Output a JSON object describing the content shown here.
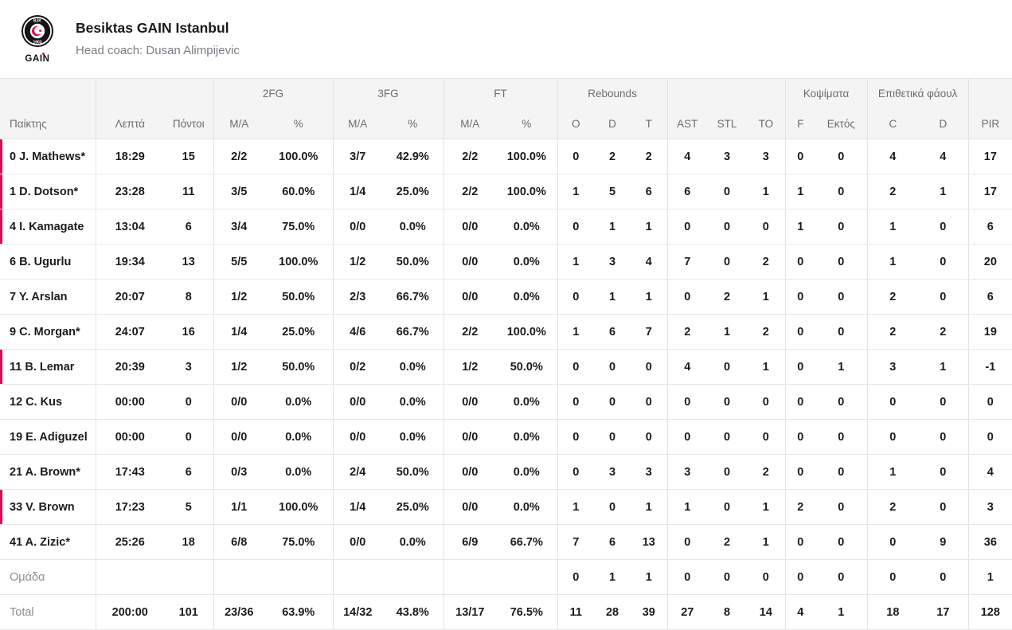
{
  "accent_color": "#e30b4b",
  "header": {
    "team_name": "Besiktas GAIN Istanbul",
    "head_coach": "Head coach: Dusan Alimpijevic",
    "logo": {
      "crest_top": "BJK",
      "crest_year": "1903",
      "brand": "GAIN"
    }
  },
  "table": {
    "groups": {
      "fg2": "2FG",
      "fg3": "3FG",
      "ft": "FT",
      "rebounds": "Rebounds",
      "blocks": "Κοψίματα",
      "offensive_fouls": "Επιθετικά φάουλ"
    },
    "columns": {
      "player": "Παίκτης",
      "minutes": "Λεπτά",
      "points": "Πόντοι",
      "ma": "M/A",
      "pct": "%",
      "reb_o": "O",
      "reb_d": "D",
      "reb_t": "T",
      "ast": "AST",
      "stl": "STL",
      "to": "TO",
      "blk_f": "F",
      "blk_against": "Εκτός",
      "foul_c": "C",
      "foul_d": "D",
      "pir": "PIR"
    },
    "rows": [
      {
        "name": "0 J. Mathews*",
        "on_court": true,
        "cells": [
          "18:29",
          "15",
          "2/2",
          "100.0%",
          "3/7",
          "42.9%",
          "2/2",
          "100.0%",
          "0",
          "2",
          "2",
          "4",
          "3",
          "3",
          "0",
          "0",
          "4",
          "4",
          "17"
        ]
      },
      {
        "name": "1 D. Dotson*",
        "on_court": true,
        "cells": [
          "23:28",
          "11",
          "3/5",
          "60.0%",
          "1/4",
          "25.0%",
          "2/2",
          "100.0%",
          "1",
          "5",
          "6",
          "6",
          "0",
          "1",
          "1",
          "0",
          "2",
          "1",
          "17"
        ]
      },
      {
        "name": "4 I. Kamagate",
        "on_court": true,
        "cells": [
          "13:04",
          "6",
          "3/4",
          "75.0%",
          "0/0",
          "0.0%",
          "0/0",
          "0.0%",
          "0",
          "1",
          "1",
          "0",
          "0",
          "0",
          "1",
          "0",
          "1",
          "0",
          "6"
        ]
      },
      {
        "name": "6 B. Ugurlu",
        "on_court": false,
        "cells": [
          "19:34",
          "13",
          "5/5",
          "100.0%",
          "1/2",
          "50.0%",
          "0/0",
          "0.0%",
          "1",
          "3",
          "4",
          "7",
          "0",
          "2",
          "0",
          "0",
          "1",
          "0",
          "20"
        ]
      },
      {
        "name": "7 Y. Arslan",
        "on_court": false,
        "cells": [
          "20:07",
          "8",
          "1/2",
          "50.0%",
          "2/3",
          "66.7%",
          "0/0",
          "0.0%",
          "0",
          "1",
          "1",
          "0",
          "2",
          "1",
          "0",
          "0",
          "2",
          "0",
          "6"
        ]
      },
      {
        "name": "9 C. Morgan*",
        "on_court": false,
        "cells": [
          "24:07",
          "16",
          "1/4",
          "25.0%",
          "4/6",
          "66.7%",
          "2/2",
          "100.0%",
          "1",
          "6",
          "7",
          "2",
          "1",
          "2",
          "0",
          "0",
          "2",
          "2",
          "19"
        ]
      },
      {
        "name": "11 B. Lemar",
        "on_court": true,
        "cells": [
          "20:39",
          "3",
          "1/2",
          "50.0%",
          "0/2",
          "0.0%",
          "1/2",
          "50.0%",
          "0",
          "0",
          "0",
          "4",
          "0",
          "1",
          "0",
          "1",
          "3",
          "1",
          "-1"
        ]
      },
      {
        "name": "12 C. Kus",
        "on_court": false,
        "cells": [
          "00:00",
          "0",
          "0/0",
          "0.0%",
          "0/0",
          "0.0%",
          "0/0",
          "0.0%",
          "0",
          "0",
          "0",
          "0",
          "0",
          "0",
          "0",
          "0",
          "0",
          "0",
          "0"
        ]
      },
      {
        "name": "19 E. Adiguzel",
        "on_court": false,
        "cells": [
          "00:00",
          "0",
          "0/0",
          "0.0%",
          "0/0",
          "0.0%",
          "0/0",
          "0.0%",
          "0",
          "0",
          "0",
          "0",
          "0",
          "0",
          "0",
          "0",
          "0",
          "0",
          "0"
        ]
      },
      {
        "name": "21 A. Brown*",
        "on_court": false,
        "cells": [
          "17:43",
          "6",
          "0/3",
          "0.0%",
          "2/4",
          "50.0%",
          "0/0",
          "0.0%",
          "0",
          "3",
          "3",
          "3",
          "0",
          "2",
          "0",
          "0",
          "1",
          "0",
          "4"
        ]
      },
      {
        "name": "33 V. Brown",
        "on_court": true,
        "cells": [
          "17:23",
          "5",
          "1/1",
          "100.0%",
          "1/4",
          "25.0%",
          "0/0",
          "0.0%",
          "1",
          "0",
          "1",
          "1",
          "0",
          "1",
          "2",
          "0",
          "2",
          "0",
          "3"
        ]
      },
      {
        "name": "41 A. Zizic*",
        "on_court": false,
        "cells": [
          "25:26",
          "18",
          "6/8",
          "75.0%",
          "0/0",
          "0.0%",
          "6/9",
          "66.7%",
          "7",
          "6",
          "13",
          "0",
          "2",
          "1",
          "0",
          "0",
          "0",
          "9",
          "36"
        ]
      }
    ],
    "team_row": {
      "name": "Ομάδα",
      "cells": [
        "",
        "",
        "",
        "",
        "",
        "",
        "",
        "",
        "0",
        "1",
        "1",
        "0",
        "0",
        "0",
        "0",
        "0",
        "0",
        "0",
        "1"
      ]
    },
    "total_row": {
      "name": "Total",
      "cells": [
        "200:00",
        "101",
        "23/36",
        "63.9%",
        "14/32",
        "43.8%",
        "13/17",
        "76.5%",
        "11",
        "28",
        "39",
        "27",
        "8",
        "14",
        "4",
        "1",
        "18",
        "17",
        "128"
      ]
    }
  }
}
